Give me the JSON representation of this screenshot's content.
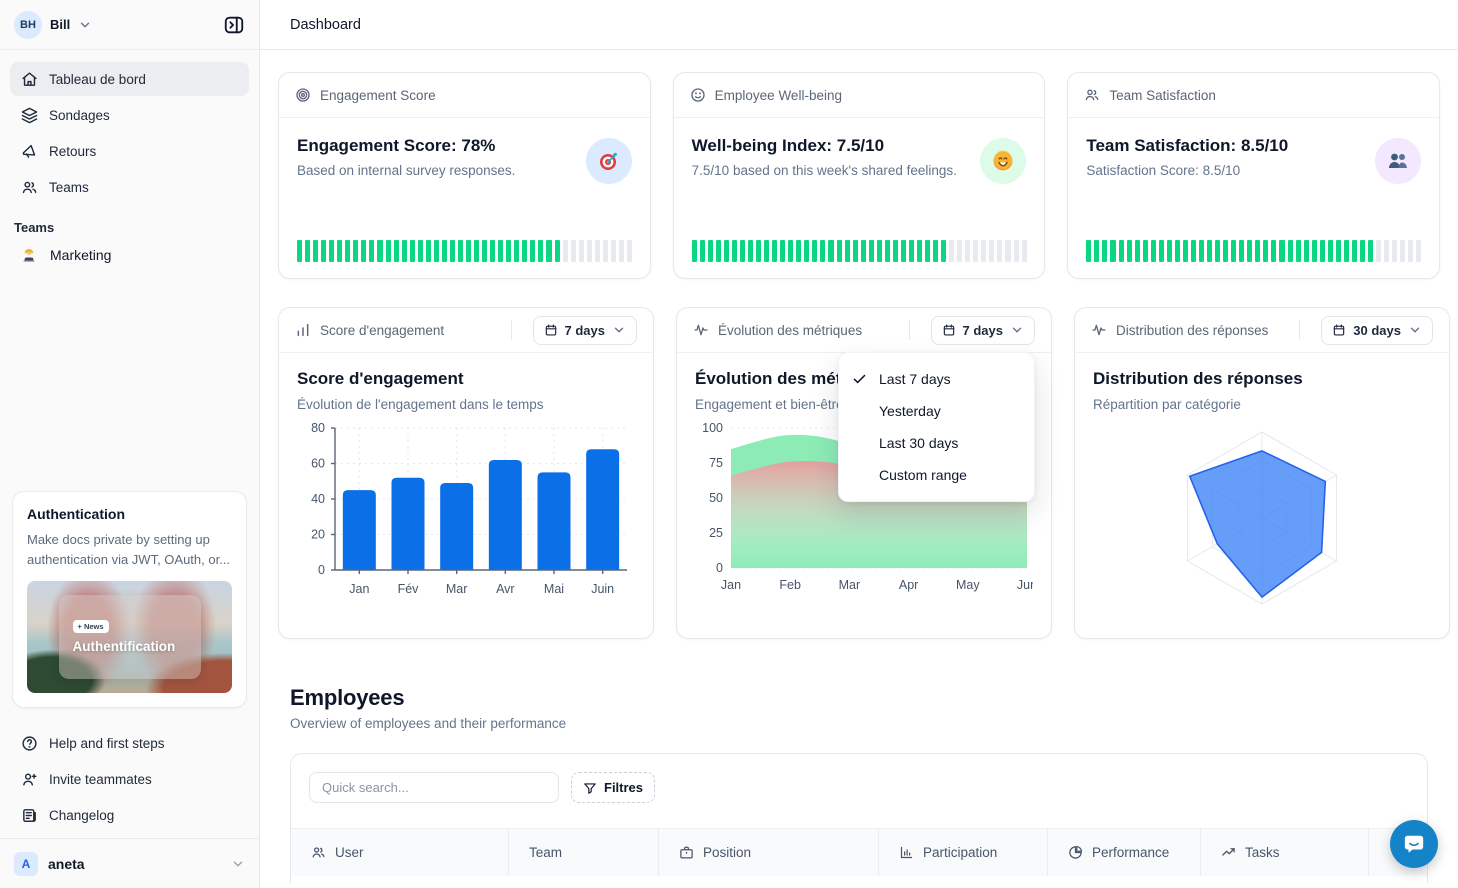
{
  "colors": {
    "progress_on": "#0bd783",
    "progress_off": "#e7eaee",
    "bar_blue": "#0b6fe8",
    "area_green": "#8debb6",
    "area_red": "#e89b9b",
    "radar_fill": "#3b82f6",
    "radar_stroke": "#2563eb",
    "grid": "#e3e8ef",
    "axis": "#5b6676",
    "tick_text": "#475569"
  },
  "header": {
    "title": "Dashboard"
  },
  "sidebar": {
    "workspace": {
      "initials": "BH",
      "name": "Bill"
    },
    "nav": [
      {
        "label": "Tableau de bord",
        "icon": "home-icon",
        "active": true
      },
      {
        "label": "Sondages",
        "icon": "layers-icon",
        "active": false
      },
      {
        "label": "Retours",
        "icon": "megaphone-icon",
        "active": false
      },
      {
        "label": "Teams",
        "icon": "users-icon",
        "active": false
      }
    ],
    "teams_section": {
      "label": "Teams",
      "items": [
        {
          "label": "Marketing",
          "icon": "technologist-emoji-icon"
        }
      ]
    },
    "promo_card": {
      "title": "Authentication",
      "description": "Make docs private by setting up authentication via JWT, OAuth, or...",
      "badge": "+ News",
      "image_title": "Authentification"
    },
    "footer_nav": [
      {
        "label": "Help and first steps",
        "icon": "help-circle-icon"
      },
      {
        "label": "Invite teammates",
        "icon": "user-plus-icon"
      },
      {
        "label": "Changelog",
        "icon": "changelog-icon"
      }
    ],
    "account": {
      "initial": "A",
      "name": "aneta"
    }
  },
  "stat_cards": [
    {
      "header_label": "Engagement Score",
      "header_icon": "target-icon",
      "title": "Engagement Score: 78%",
      "subtitle": "Based on internal survey responses.",
      "badge_icon": "dart-emoji-icon",
      "badge_bg": "#dbeafe",
      "progress_percent": 78
    },
    {
      "header_label": "Employee Well-being",
      "header_icon": "smiley-icon",
      "title": "Well-being Index: 7.5/10",
      "subtitle": "7.5/10 based on this week's shared feelings.",
      "badge_icon": "smile-emoji-icon",
      "badge_bg": "#dcfce7",
      "progress_percent": 75
    },
    {
      "header_label": "Team Satisfaction",
      "header_icon": "users-icon",
      "title": "Team Satisfaction: 8.5/10",
      "subtitle": "Satisfaction Score: 8.5/10",
      "badge_icon": "people-emoji-icon",
      "badge_bg": "#f3e8ff",
      "progress_percent": 85
    }
  ],
  "chart_cards": [
    {
      "header_label": "Score d'engagement",
      "header_icon": "bar-chart-icon",
      "range_label": "7 days"
    },
    {
      "header_label": "Évolution des métriques",
      "header_icon": "activity-icon",
      "range_label": "7 days"
    },
    {
      "header_label": "Distribution des réponses",
      "header_icon": "activity-icon",
      "range_label": "30 days"
    }
  ],
  "range_menu": {
    "items": [
      {
        "label": "Last 7 days",
        "checked": true
      },
      {
        "label": "Yesterday",
        "checked": false
      },
      {
        "label": "Last 30 days",
        "checked": false
      },
      {
        "label": "Custom range",
        "checked": false
      }
    ]
  },
  "chart_data": [
    {
      "type": "bar",
      "title": "Score d'engagement",
      "subtitle": "Évolution de l'engagement dans le temps",
      "categories": [
        "Jan",
        "Fév",
        "Mar",
        "Avr",
        "Mai",
        "Juin"
      ],
      "values": [
        45,
        52,
        49,
        62,
        55,
        68
      ],
      "ylim": [
        0,
        80
      ],
      "yticks": [
        0,
        20,
        40,
        60,
        80
      ],
      "grid": true,
      "legend": "none"
    },
    {
      "type": "area",
      "title": "Évolution des métriques",
      "subtitle": "Engagement et bien-être",
      "categories": [
        "Jan",
        "Feb",
        "Mar",
        "Apr",
        "May",
        "Jun"
      ],
      "series": [
        {
          "name": "engagement",
          "values": [
            85,
            95,
            88,
            62,
            68,
            66
          ]
        },
        {
          "name": "bien-etre",
          "values": [
            66,
            76,
            73,
            58,
            63,
            64
          ]
        }
      ],
      "ylim": [
        0,
        100
      ],
      "yticks": [
        0,
        25,
        50,
        75,
        100
      ],
      "grid": true,
      "legend": "none"
    },
    {
      "type": "radar",
      "title": "Distribution des réponses",
      "subtitle": "Répartition par catégorie",
      "axes_count": 6,
      "values": [
        78,
        85,
        80,
        92,
        60,
        97
      ],
      "max": 100,
      "rings": 3,
      "legend": "none"
    }
  ],
  "employees": {
    "title": "Employees",
    "subtitle": "Overview of employees and their performance",
    "search_placeholder": "Quick search...",
    "filter_label": "Filtres",
    "columns": [
      {
        "label": "User",
        "icon": "users-icon"
      },
      {
        "label": "Team",
        "icon": "none"
      },
      {
        "label": "Position",
        "icon": "briefcase-icon"
      },
      {
        "label": "Participation",
        "icon": "bar-chart-icon"
      },
      {
        "label": "Performance",
        "icon": "pie-chart-icon"
      },
      {
        "label": "Tasks",
        "icon": "trending-up-icon"
      }
    ]
  }
}
